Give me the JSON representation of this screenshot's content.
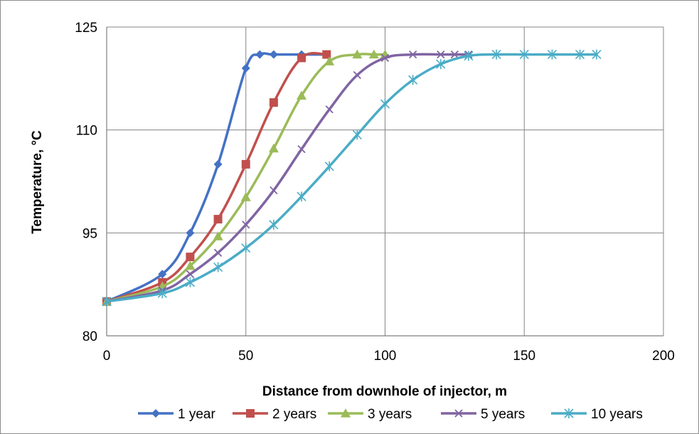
{
  "chart_data": {
    "type": "line",
    "title": "",
    "xlabel": "Distance from downhole of injector, m",
    "ylabel": "Temperature, °C",
    "xlim": [
      0,
      200
    ],
    "ylim": [
      80,
      125
    ],
    "x_ticks": [
      "0",
      "50",
      "100",
      "150",
      "200"
    ],
    "y_ticks": [
      "80",
      "95",
      "110",
      "125"
    ],
    "grid": "both",
    "legend_position": "bottom",
    "series": [
      {
        "name": "1 year",
        "color": "#4472C4",
        "marker": "diamond",
        "points": [
          [
            0,
            85
          ],
          [
            20,
            89
          ],
          [
            30,
            95
          ],
          [
            40,
            105
          ],
          [
            50,
            119
          ],
          [
            55,
            121
          ],
          [
            60,
            121
          ],
          [
            70,
            121
          ],
          [
            79,
            121
          ]
        ]
      },
      {
        "name": "2 years",
        "color": "#C0504D",
        "marker": "square",
        "points": [
          [
            0,
            85
          ],
          [
            20,
            87.8
          ],
          [
            30,
            91.5
          ],
          [
            40,
            97
          ],
          [
            50,
            105
          ],
          [
            60,
            114
          ],
          [
            70,
            120.5
          ],
          [
            79,
            121
          ]
        ]
      },
      {
        "name": "3 years",
        "color": "#9BBB59",
        "marker": "triangle",
        "points": [
          [
            0,
            85
          ],
          [
            20,
            87.2
          ],
          [
            30,
            90.2
          ],
          [
            40,
            94.5
          ],
          [
            50,
            100.2
          ],
          [
            60,
            107.3
          ],
          [
            70,
            115
          ],
          [
            80,
            120
          ],
          [
            90,
            121
          ],
          [
            96,
            121
          ],
          [
            100,
            121
          ]
        ]
      },
      {
        "name": "5 years",
        "color": "#8064A2",
        "marker": "x",
        "points": [
          [
            0,
            85
          ],
          [
            20,
            86.6
          ],
          [
            30,
            89
          ],
          [
            40,
            92.1
          ],
          [
            50,
            96.2
          ],
          [
            60,
            101.2
          ],
          [
            70,
            107.2
          ],
          [
            80,
            113
          ],
          [
            90,
            118
          ],
          [
            100,
            120.5
          ],
          [
            110,
            121
          ],
          [
            120,
            121
          ],
          [
            125,
            121
          ],
          [
            130,
            121
          ]
        ]
      },
      {
        "name": "10 years",
        "color": "#4BACC6",
        "marker": "star",
        "points": [
          [
            0,
            85
          ],
          [
            20,
            86.2
          ],
          [
            30,
            87.8
          ],
          [
            40,
            90
          ],
          [
            50,
            92.8
          ],
          [
            60,
            96.2
          ],
          [
            70,
            100.3
          ],
          [
            80,
            104.7
          ],
          [
            90,
            109.3
          ],
          [
            100,
            113.8
          ],
          [
            110,
            117.3
          ],
          [
            120,
            119.6
          ],
          [
            130,
            120.8
          ],
          [
            140,
            121
          ],
          [
            150,
            121
          ],
          [
            160,
            121
          ],
          [
            170,
            121
          ],
          [
            176,
            121
          ]
        ]
      }
    ]
  }
}
